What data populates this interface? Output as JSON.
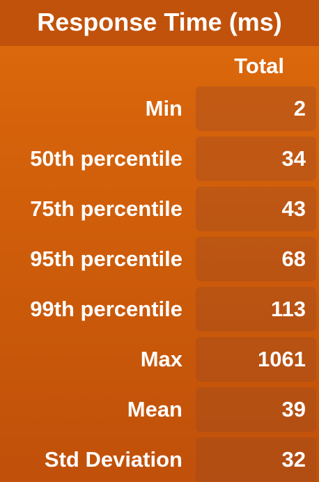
{
  "title": "Response Time (ms)",
  "column_header": "Total",
  "rows": [
    {
      "label": "Min",
      "value": "2"
    },
    {
      "label": "50th percentile",
      "value": "34"
    },
    {
      "label": "75th percentile",
      "value": "43"
    },
    {
      "label": "95th percentile",
      "value": "68"
    },
    {
      "label": "99th percentile",
      "value": "113"
    },
    {
      "label": "Max",
      "value": "1061"
    },
    {
      "label": "Mean",
      "value": "39"
    },
    {
      "label": "Std Deviation",
      "value": "32"
    }
  ],
  "colors": {
    "background": "#d7640b",
    "title_bar": "#c1520b",
    "cell": "#b85a22",
    "text": "#ffffff"
  }
}
